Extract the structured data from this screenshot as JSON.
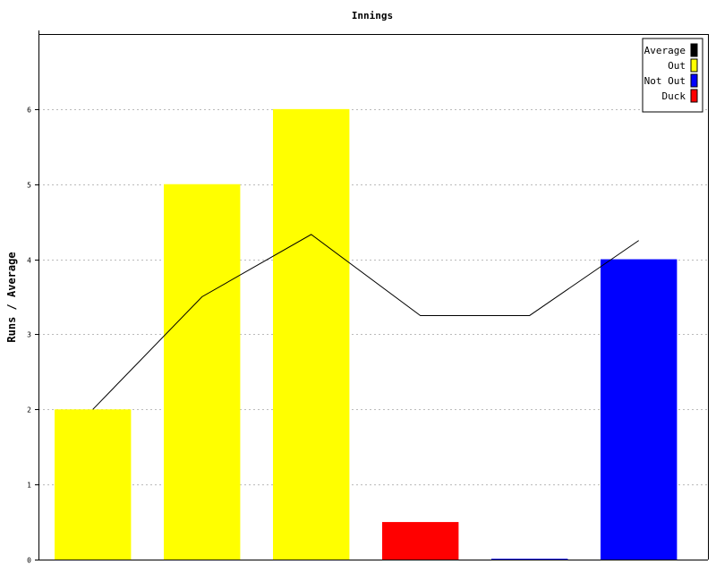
{
  "chart_data": {
    "type": "bar",
    "title": "Innings",
    "xlabel": "",
    "ylabel": "Runs / Average",
    "ylim": [
      0,
      7
    ],
    "yticks": [
      0,
      1,
      2,
      3,
      4,
      5,
      6
    ],
    "grid": true,
    "legend_position": "top-right",
    "legend": [
      {
        "label": "Average",
        "color": "#000000"
      },
      {
        "label": "Out",
        "color": "#ffff00"
      },
      {
        "label": "Not Out",
        "color": "#0000ff"
      },
      {
        "label": "Duck",
        "color": "#ff0000"
      }
    ],
    "bars": [
      {
        "value": 2,
        "status": "Out",
        "color": "#ffff00"
      },
      {
        "value": 5,
        "status": "Out",
        "color": "#ffff00"
      },
      {
        "value": 6,
        "status": "Out",
        "color": "#ffff00"
      },
      {
        "value": 0.5,
        "status": "Duck",
        "color": "#ff0000"
      },
      {
        "value": 0,
        "status": "Not Out",
        "color": "#0000ff"
      },
      {
        "value": 4,
        "status": "Not Out",
        "color": "#0000ff"
      }
    ],
    "average": {
      "name": "Average",
      "color": "#000000",
      "values": [
        2,
        3.5,
        4.33,
        3.25,
        3.25,
        4.25
      ]
    }
  }
}
